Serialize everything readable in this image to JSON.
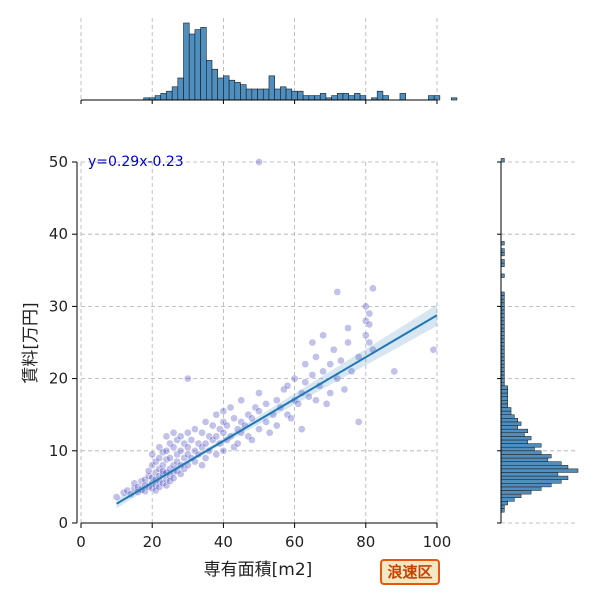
{
  "chart_data": {
    "type": "scatter",
    "xlabel": "専有面積[m2]",
    "ylabel": "賃料[万円]",
    "xlim": [
      0,
      100
    ],
    "ylim": [
      0,
      50
    ],
    "xticks": [
      "0",
      "20",
      "40",
      "60",
      "80",
      "100"
    ],
    "yticks": [
      "0",
      "10",
      "20",
      "30",
      "40",
      "50"
    ],
    "grid": true,
    "annotation": "y=0.29x-0.23",
    "badge": "浪速区",
    "regression": {
      "slope": 0.29,
      "intercept": -0.23,
      "x_start": 10,
      "x_end": 100
    },
    "colors": {
      "points": "#1f1fb4",
      "line": "#1f77b4",
      "hist": "#4f8fbf",
      "annotation": "#0000cc",
      "badge_border": "#e8580c"
    },
    "points": [
      [
        10,
        3.6
      ],
      [
        12,
        4.2
      ],
      [
        13,
        4.5
      ],
      [
        14,
        4.0
      ],
      [
        15,
        4.8
      ],
      [
        15,
        5.5
      ],
      [
        16,
        5.0
      ],
      [
        16,
        4.3
      ],
      [
        17,
        5.8
      ],
      [
        17,
        4.6
      ],
      [
        18,
        6.0
      ],
      [
        18,
        5.2
      ],
      [
        18,
        4.4
      ],
      [
        19,
        6.5
      ],
      [
        19,
        5.0
      ],
      [
        19,
        7.2
      ],
      [
        20,
        5.5
      ],
      [
        20,
        6.3
      ],
      [
        20,
        4.8
      ],
      [
        20,
        8.0
      ],
      [
        20,
        9.5
      ],
      [
        21,
        6.0
      ],
      [
        21,
        5.2
      ],
      [
        21,
        7.0
      ],
      [
        21,
        8.5
      ],
      [
        21,
        4.5
      ],
      [
        22,
        6.5
      ],
      [
        22,
        5.8
      ],
      [
        22,
        7.5
      ],
      [
        22,
        9.0
      ],
      [
        22,
        10.5
      ],
      [
        22,
        5.0
      ],
      [
        23,
        6.8
      ],
      [
        23,
        8.0
      ],
      [
        23,
        5.5
      ],
      [
        23,
        9.8
      ],
      [
        23,
        7.2
      ],
      [
        24,
        7.0
      ],
      [
        24,
        6.0
      ],
      [
        24,
        8.8
      ],
      [
        24,
        10.0
      ],
      [
        24,
        5.2
      ],
      [
        24,
        12.0
      ],
      [
        25,
        7.5
      ],
      [
        25,
        6.5
      ],
      [
        25,
        9.0
      ],
      [
        25,
        11.0
      ],
      [
        25,
        5.8
      ],
      [
        26,
        8.0
      ],
      [
        26,
        7.0
      ],
      [
        26,
        10.5
      ],
      [
        26,
        6.2
      ],
      [
        26,
        12.5
      ],
      [
        27,
        8.5
      ],
      [
        27,
        7.2
      ],
      [
        27,
        9.5
      ],
      [
        27,
        11.5
      ],
      [
        28,
        8.0
      ],
      [
        28,
        10.0
      ],
      [
        28,
        6.8
      ],
      [
        28,
        12.0
      ],
      [
        29,
        9.0
      ],
      [
        29,
        7.5
      ],
      [
        29,
        11.0
      ],
      [
        30,
        9.5
      ],
      [
        30,
        8.0
      ],
      [
        30,
        12.5
      ],
      [
        30,
        10.5
      ],
      [
        30,
        20.0
      ],
      [
        31,
        9.0
      ],
      [
        31,
        11.5
      ],
      [
        32,
        10.0
      ],
      [
        32,
        8.5
      ],
      [
        32,
        13.0
      ],
      [
        33,
        9.5
      ],
      [
        33,
        11.0
      ],
      [
        34,
        10.5
      ],
      [
        34,
        12.5
      ],
      [
        34,
        8.0
      ],
      [
        35,
        11.0
      ],
      [
        35,
        9.0
      ],
      [
        35,
        14.0
      ],
      [
        36,
        10.0
      ],
      [
        36,
        12.0
      ],
      [
        37,
        11.5
      ],
      [
        37,
        13.5
      ],
      [
        38,
        12.0
      ],
      [
        38,
        9.5
      ],
      [
        38,
        15.0
      ],
      [
        39,
        11.0
      ],
      [
        39,
        13.0
      ],
      [
        40,
        12.5
      ],
      [
        40,
        10.0
      ],
      [
        40,
        15.5
      ],
      [
        40,
        14.0
      ],
      [
        41,
        11.5
      ],
      [
        41,
        13.5
      ],
      [
        42,
        12.0
      ],
      [
        42,
        16.0
      ],
      [
        43,
        10.5
      ],
      [
        43,
        14.5
      ],
      [
        44,
        13.0
      ],
      [
        44,
        11.0
      ],
      [
        45,
        14.0
      ],
      [
        45,
        12.5
      ],
      [
        45,
        17.0
      ],
      [
        46,
        13.5
      ],
      [
        47,
        12.0
      ],
      [
        47,
        15.0
      ],
      [
        48,
        14.5
      ],
      [
        48,
        11.5
      ],
      [
        49,
        16.0
      ],
      [
        50,
        13.0
      ],
      [
        50,
        15.5
      ],
      [
        50,
        18.0
      ],
      [
        50,
        50.0
      ],
      [
        52,
        14.0
      ],
      [
        52,
        16.5
      ],
      [
        53,
        12.5
      ],
      [
        54,
        15.0
      ],
      [
        55,
        17.0
      ],
      [
        55,
        13.5
      ],
      [
        56,
        16.0
      ],
      [
        57,
        18.5
      ],
      [
        58,
        15.0
      ],
      [
        58,
        19.0
      ],
      [
        59,
        14.5
      ],
      [
        60,
        17.0
      ],
      [
        60,
        20.0
      ],
      [
        61,
        16.5
      ],
      [
        62,
        18.0
      ],
      [
        62,
        13.0
      ],
      [
        63,
        19.5
      ],
      [
        64,
        17.5
      ],
      [
        65,
        20.5
      ],
      [
        65,
        25.0
      ],
      [
        66,
        23.0
      ],
      [
        67,
        19.0
      ],
      [
        68,
        21.0
      ],
      [
        68,
        26.0
      ],
      [
        69,
        16.5
      ],
      [
        70,
        22.0
      ],
      [
        70,
        18.0
      ],
      [
        71,
        24.0
      ],
      [
        72,
        20.0
      ],
      [
        73,
        22.5
      ],
      [
        74,
        18.5
      ],
      [
        75,
        25.0
      ],
      [
        76,
        21.0
      ],
      [
        78,
        23.0
      ],
      [
        80,
        26.0
      ],
      [
        80,
        28.0
      ],
      [
        80,
        30.0
      ],
      [
        81,
        29.0
      ],
      [
        81,
        25.0
      ],
      [
        81,
        27.5
      ],
      [
        82,
        32.5
      ],
      [
        82,
        24.0
      ],
      [
        88,
        21.0
      ],
      [
        99,
        24.0
      ],
      [
        78,
        14.0
      ],
      [
        66,
        17.0
      ],
      [
        72,
        32.0
      ],
      [
        75,
        27.0
      ],
      [
        63,
        22.0
      ]
    ],
    "x_histogram": {
      "bin_start": 0,
      "bin_width": 1.6,
      "counts": [
        0,
        0,
        0,
        0,
        0,
        0,
        0,
        0,
        0,
        0,
        0,
        1,
        1,
        2,
        3,
        4,
        6,
        10,
        35,
        30,
        32,
        33,
        18,
        14,
        10,
        11,
        9,
        8,
        7,
        5,
        5,
        5,
        5,
        11,
        5,
        6,
        5,
        4,
        4,
        2,
        2,
        2,
        3,
        1,
        2,
        3,
        3,
        2,
        3,
        2,
        0,
        1,
        4,
        2,
        0,
        0,
        3,
        0,
        0,
        0,
        0,
        2,
        2,
        0,
        0,
        1
      ]
    },
    "y_histogram": {
      "bin_start": 0,
      "bin_width": 0.5,
      "counts": [
        0,
        0,
        0,
        1,
        1,
        2,
        4,
        6,
        9,
        12,
        15,
        18,
        20,
        17,
        23,
        20,
        18,
        14,
        15,
        12,
        10,
        12,
        8,
        9,
        7,
        8,
        5,
        6,
        5,
        4,
        3,
        3,
        2,
        2,
        2,
        2,
        2,
        2,
        1,
        1,
        1,
        1,
        1,
        1,
        1,
        1,
        1,
        1,
        1,
        1,
        1,
        1,
        1,
        1,
        1,
        1,
        1,
        1,
        1,
        1,
        1,
        1,
        1,
        1,
        0,
        0,
        0,
        0,
        1,
        0,
        0,
        1,
        1,
        0,
        1,
        1,
        0,
        1,
        0,
        0,
        0,
        0,
        0,
        0,
        0,
        0,
        0,
        0,
        0,
        0,
        0,
        0,
        0,
        0,
        0,
        0,
        0,
        0,
        0,
        0,
        1
      ]
    }
  }
}
